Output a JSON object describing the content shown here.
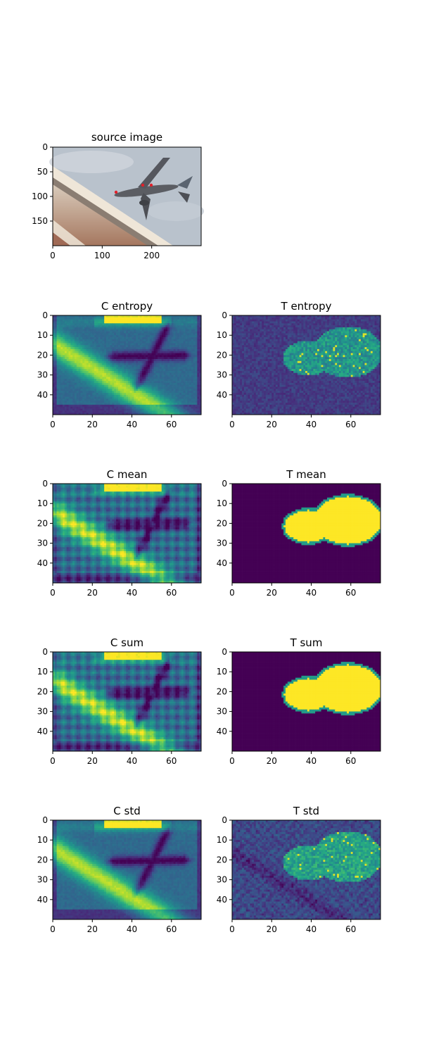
{
  "chart_data": [
    {
      "type": "heatmap",
      "title": "source image",
      "image": "photo",
      "xlim": [
        0,
        300
      ],
      "ylim": [
        200,
        0
      ],
      "xticks": [
        0,
        100,
        200
      ],
      "yticks": [
        0,
        50,
        100,
        150
      ],
      "photo": {
        "sky": "#b9c2cc",
        "ground": [
          "#c8b7a6",
          "#efe6d8",
          "#a07060"
        ],
        "aircraft": "#5b5d63",
        "keypoints": [
          [
            128,
            90
          ],
          [
            180,
            76
          ],
          [
            200,
            76
          ]
        ],
        "keypoint_color": "#e0202a"
      }
    },
    {
      "type": "heatmap",
      "title": "C entropy",
      "pattern": "C",
      "xlim": [
        0,
        75
      ],
      "ylim": [
        50,
        0
      ],
      "xticks": [
        0,
        20,
        40,
        60
      ],
      "yticks": [
        0,
        10,
        20,
        30,
        40
      ]
    },
    {
      "type": "heatmap",
      "title": "T entropy",
      "pattern": "T-noisy",
      "xlim": [
        0,
        75
      ],
      "ylim": [
        50,
        0
      ],
      "xticks": [
        0,
        20,
        40,
        60
      ],
      "yticks": [
        0,
        10,
        20,
        30,
        40
      ]
    },
    {
      "type": "heatmap",
      "title": "C mean",
      "pattern": "C-grid",
      "xlim": [
        0,
        75
      ],
      "ylim": [
        50,
        0
      ],
      "xticks": [
        0,
        20,
        40,
        60
      ],
      "yticks": [
        0,
        10,
        20,
        30,
        40
      ]
    },
    {
      "type": "heatmap",
      "title": "T mean",
      "pattern": "T-blob",
      "xlim": [
        0,
        75
      ],
      "ylim": [
        50,
        0
      ],
      "xticks": [
        0,
        20,
        40,
        60
      ],
      "yticks": [
        0,
        10,
        20,
        30,
        40
      ]
    },
    {
      "type": "heatmap",
      "title": "C sum",
      "pattern": "C-grid",
      "xlim": [
        0,
        75
      ],
      "ylim": [
        50,
        0
      ],
      "xticks": [
        0,
        20,
        40,
        60
      ],
      "yticks": [
        0,
        10,
        20,
        30,
        40
      ]
    },
    {
      "type": "heatmap",
      "title": "T sum",
      "pattern": "T-blob",
      "xlim": [
        0,
        75
      ],
      "ylim": [
        50,
        0
      ],
      "xticks": [
        0,
        20,
        40,
        60
      ],
      "yticks": [
        0,
        10,
        20,
        30,
        40
      ]
    },
    {
      "type": "heatmap",
      "title": "C std",
      "pattern": "C",
      "xlim": [
        0,
        75
      ],
      "ylim": [
        50,
        0
      ],
      "xticks": [
        0,
        20,
        40,
        60
      ],
      "yticks": [
        0,
        10,
        20,
        30,
        40
      ]
    },
    {
      "type": "heatmap",
      "title": "T std",
      "pattern": "T-std",
      "xlim": [
        0,
        75
      ],
      "ylim": [
        50,
        0
      ],
      "xticks": [
        0,
        20,
        40,
        60
      ],
      "yticks": [
        0,
        10,
        20,
        30,
        40
      ]
    }
  ],
  "colors": {
    "colormap": "viridis",
    "low": "#440154",
    "mid": "#21918c",
    "high": "#fde725"
  }
}
